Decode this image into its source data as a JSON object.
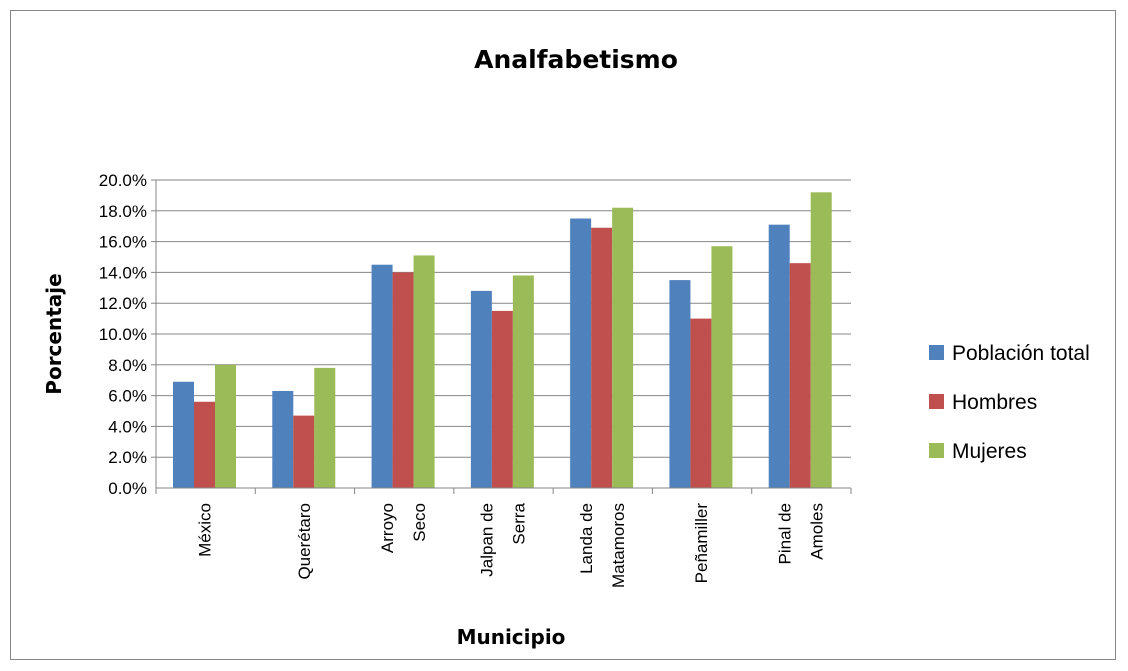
{
  "chart_data": {
    "type": "bar",
    "title": "Analfabetismo",
    "xlabel": "Municipio",
    "ylabel": "Porcentaje",
    "ylim": [
      0,
      20
    ],
    "y_tick_labels": [
      "0.0%",
      "2.0%",
      "4.0%",
      "6.0%",
      "8.0%",
      "10.0%",
      "12.0%",
      "14.0%",
      "16.0%",
      "18.0%",
      "20.0%"
    ],
    "grid": true,
    "legend_position": "right",
    "categories": [
      [
        "México"
      ],
      [
        "Querétaro"
      ],
      [
        "Arroyo",
        "Seco"
      ],
      [
        "Jalpan de",
        "Serra"
      ],
      [
        "Landa de",
        "Matamoros"
      ],
      [
        "Peñamiller"
      ],
      [
        "Pinal de",
        "Amoles"
      ]
    ],
    "series": [
      {
        "name": "Población total",
        "color": "#4F81BD",
        "values": [
          6.9,
          6.3,
          14.5,
          12.8,
          17.5,
          13.5,
          17.1
        ]
      },
      {
        "name": "Hombres",
        "color": "#C0504D",
        "values": [
          5.6,
          4.7,
          14.0,
          11.5,
          16.9,
          11.0,
          14.6
        ]
      },
      {
        "name": "Mujeres",
        "color": "#9BBB59",
        "values": [
          8.0,
          7.8,
          15.1,
          13.8,
          18.2,
          15.7,
          19.2
        ]
      }
    ]
  }
}
